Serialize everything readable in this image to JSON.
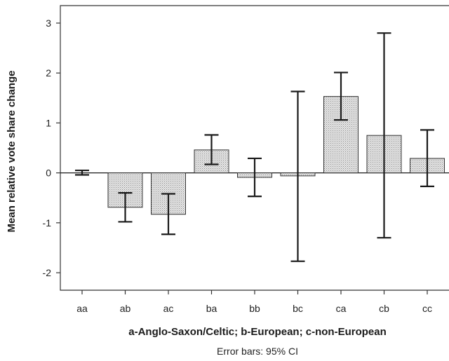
{
  "chart_data": {
    "type": "bar",
    "categories": [
      "aa",
      "ab",
      "ac",
      "ba",
      "bb",
      "bc",
      "ca",
      "cb",
      "cc"
    ],
    "values": [
      0.0,
      -0.69,
      -0.83,
      0.46,
      -0.09,
      -0.06,
      1.53,
      0.75,
      0.29
    ],
    "error_low": [
      -0.04,
      -0.98,
      -1.23,
      0.17,
      -0.47,
      -1.77,
      1.06,
      -1.3,
      -0.27
    ],
    "error_high": [
      0.05,
      -0.4,
      -0.42,
      0.76,
      0.29,
      1.63,
      2.01,
      2.8,
      0.86
    ],
    "xlabel": "a-Anglo-Saxon/Celtic; b-European; c-non-European",
    "ylabel": "Mean relative vote share change",
    "footnote": "Error bars: 95% CI",
    "ylim": [
      -2.35,
      3.35
    ],
    "yticks": [
      -2,
      -1,
      0,
      1,
      2,
      3
    ],
    "grid": false,
    "bar_fill": "#d9d9d9",
    "bar_stroke": "#333333",
    "text_color": "#222222"
  }
}
